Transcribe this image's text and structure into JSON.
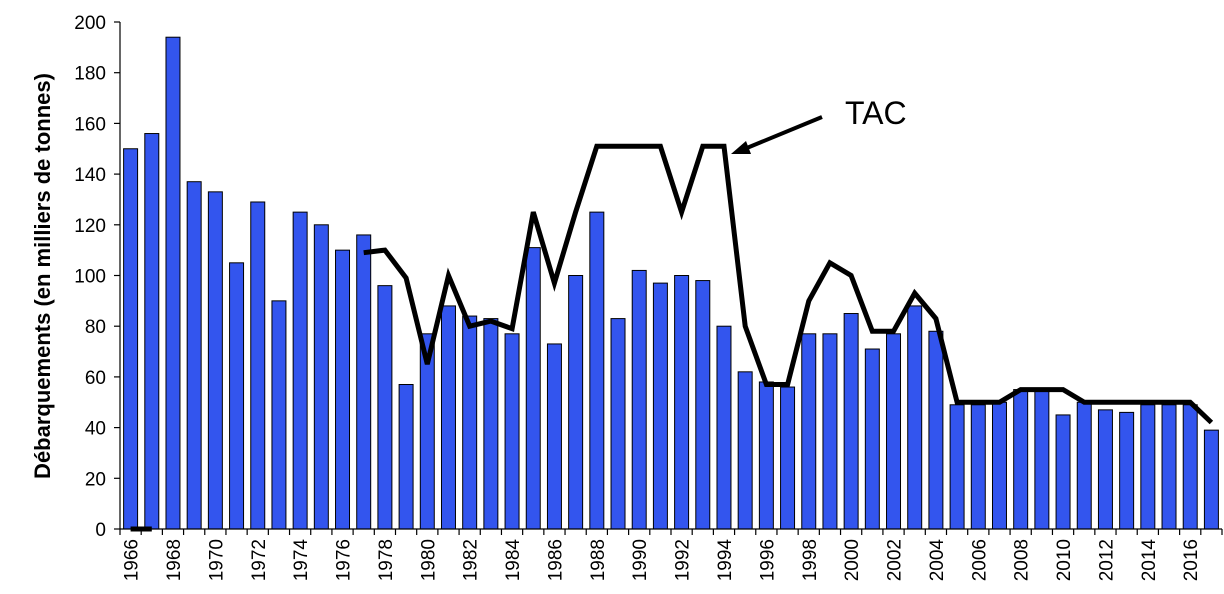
{
  "chart_data": {
    "type": "bar",
    "y_label": "Débarquements (en milliers de tonnes)",
    "annotation": "TAC",
    "categories": [
      "1966",
      null,
      "1968",
      null,
      "1970",
      null,
      "1972",
      null,
      "1974",
      null,
      "1976",
      null,
      "1978",
      null,
      "1980",
      null,
      "1982",
      null,
      "1984",
      null,
      "1986",
      null,
      "1988",
      null,
      "1990",
      null,
      "1992",
      null,
      "1994",
      null,
      "1996",
      null,
      "1998",
      null,
      "2000",
      null,
      "2002",
      null,
      "2004",
      null,
      "2006",
      null,
      "2008",
      null,
      "2010",
      null,
      "2012",
      null,
      "2014",
      null,
      "2016",
      null
    ],
    "series": [
      {
        "name": "Débarquements",
        "color": "#3355ee",
        "values": [
          150,
          156,
          194,
          137,
          133,
          105,
          129,
          90,
          125,
          120,
          110,
          116,
          96,
          57,
          77,
          88,
          84,
          83,
          77,
          111,
          73,
          100,
          125,
          83,
          102,
          97,
          100,
          98,
          80,
          62,
          58,
          56,
          77,
          77,
          85,
          71,
          77,
          88,
          78,
          49,
          49,
          50,
          55,
          55,
          45,
          50,
          47,
          46,
          49,
          49,
          49,
          39
        ]
      },
      {
        "name": "TAC",
        "type": "line",
        "color": "#000000",
        "values": [
          0,
          0,
          null,
          null,
          null,
          null,
          null,
          null,
          null,
          null,
          null,
          109,
          110,
          99,
          65,
          100,
          80,
          82,
          79,
          125,
          97,
          125,
          151,
          151,
          151,
          151,
          125,
          151,
          151,
          80,
          57,
          57,
          90,
          105,
          100,
          78,
          78,
          93,
          83,
          50,
          50,
          50,
          55,
          55,
          55,
          50,
          50,
          50,
          50,
          50,
          50,
          42
        ]
      }
    ],
    "ylim": [
      0,
      200
    ],
    "yticks": [
      0,
      20,
      40,
      60,
      80,
      100,
      120,
      140,
      160,
      180,
      200
    ],
    "grid": false
  }
}
